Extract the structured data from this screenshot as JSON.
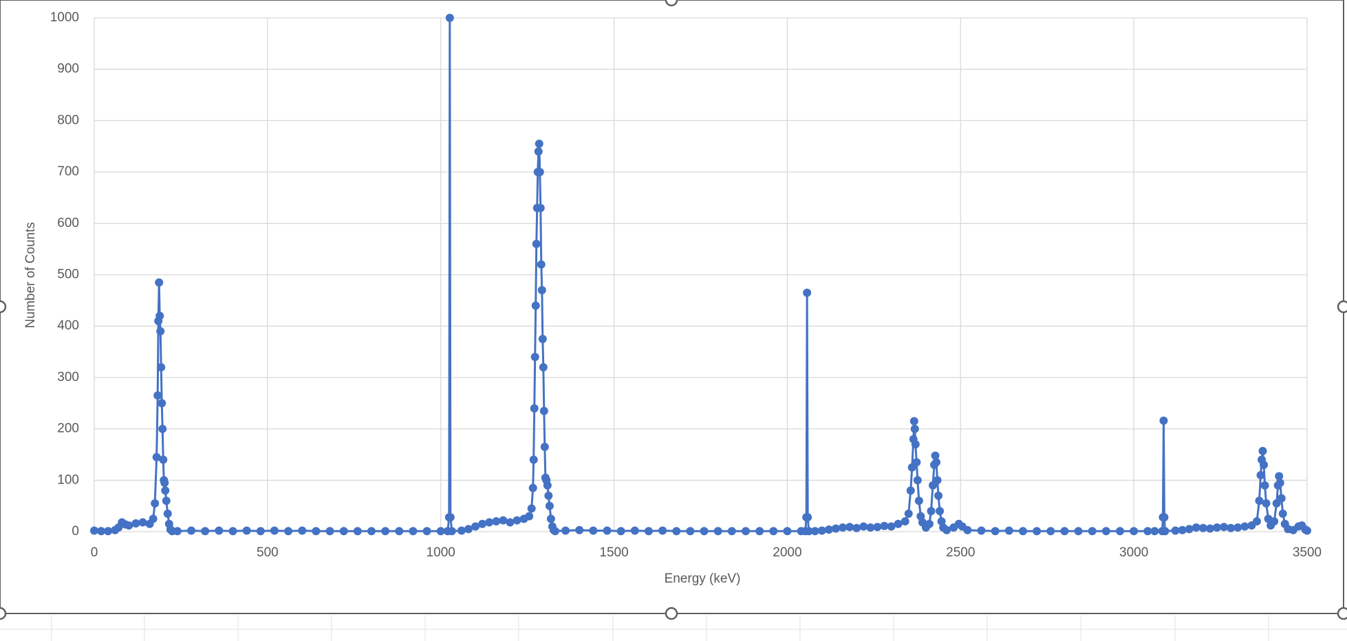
{
  "chart_data": {
    "type": "scatter",
    "lines": true,
    "markers": true,
    "grid": true,
    "x_label": "Energy (keV)",
    "y_label": "Number of Counts",
    "xlim": [
      0,
      3500
    ],
    "xticks": [
      0,
      500,
      1000,
      1500,
      2000,
      2500,
      3000,
      3500
    ],
    "ylim": [
      0,
      1000
    ],
    "yticks": [
      0,
      100,
      200,
      300,
      400,
      500,
      600,
      700,
      800,
      900,
      1000
    ],
    "x": [
      0,
      20,
      40,
      60,
      70,
      80,
      90,
      100,
      120,
      140,
      160,
      170,
      175,
      180,
      183,
      185,
      187,
      189,
      191,
      193,
      195,
      197,
      199,
      201,
      203,
      205,
      208,
      212,
      216,
      220,
      225,
      240,
      280,
      320,
      360,
      400,
      440,
      480,
      520,
      560,
      600,
      640,
      680,
      720,
      760,
      800,
      840,
      880,
      920,
      960,
      1000,
      1020,
      1024,
      1026,
      1028,
      1032,
      1060,
      1080,
      1100,
      1120,
      1140,
      1160,
      1180,
      1200,
      1220,
      1240,
      1255,
      1262,
      1266,
      1268,
      1270,
      1272,
      1274,
      1276,
      1278,
      1280,
      1282,
      1284,
      1286,
      1288,
      1290,
      1292,
      1294,
      1296,
      1298,
      1300,
      1302,
      1305,
      1308,
      1311,
      1314,
      1318,
      1322,
      1326,
      1330,
      1360,
      1400,
      1440,
      1480,
      1520,
      1560,
      1600,
      1640,
      1680,
      1720,
      1760,
      1800,
      1840,
      1880,
      1920,
      1960,
      2000,
      2040,
      2052,
      2055,
      2057,
      2059,
      2062,
      2080,
      2100,
      2120,
      2140,
      2160,
      2180,
      2200,
      2220,
      2240,
      2260,
      2280,
      2300,
      2320,
      2340,
      2350,
      2356,
      2360,
      2364,
      2366,
      2368,
      2370,
      2373,
      2376,
      2380,
      2385,
      2390,
      2400,
      2410,
      2415,
      2420,
      2424,
      2427,
      2430,
      2433,
      2436,
      2440,
      2445,
      2450,
      2460,
      2480,
      2495,
      2505,
      2520,
      2560,
      2600,
      2640,
      2680,
      2720,
      2760,
      2800,
      2840,
      2880,
      2920,
      2960,
      3000,
      3040,
      3060,
      3082,
      3084,
      3086,
      3088,
      3090,
      3120,
      3140,
      3160,
      3180,
      3200,
      3220,
      3240,
      3260,
      3280,
      3300,
      3320,
      3340,
      3355,
      3362,
      3366,
      3369,
      3372,
      3375,
      3378,
      3382,
      3388,
      3395,
      3405,
      3412,
      3416,
      3419,
      3422,
      3426,
      3430,
      3436,
      3445,
      3460,
      3475,
      3485,
      3495,
      3500
    ],
    "series": [
      {
        "color": "#4472c4",
        "values": [
          2,
          1,
          1,
          3,
          8,
          18,
          14,
          12,
          16,
          18,
          15,
          25,
          55,
          145,
          265,
          410,
          485,
          420,
          390,
          320,
          250,
          200,
          140,
          100,
          95,
          80,
          60,
          35,
          15,
          4,
          1,
          1,
          2,
          1,
          2,
          1,
          2,
          1,
          2,
          1,
          2,
          1,
          1,
          1,
          1,
          1,
          1,
          1,
          1,
          1,
          1,
          1,
          28,
          1000,
          28,
          1,
          2,
          5,
          10,
          15,
          18,
          20,
          22,
          18,
          22,
          25,
          30,
          45,
          85,
          140,
          240,
          340,
          440,
          560,
          630,
          700,
          740,
          755,
          700,
          630,
          520,
          470,
          375,
          320,
          235,
          165,
          105,
          100,
          90,
          70,
          50,
          25,
          10,
          3,
          1,
          2,
          3,
          2,
          2,
          1,
          2,
          1,
          2,
          1,
          1,
          1,
          1,
          1,
          1,
          1,
          1,
          1,
          1,
          1,
          28,
          465,
          28,
          1,
          1,
          2,
          4,
          6,
          8,
          9,
          7,
          10,
          8,
          9,
          11,
          10,
          15,
          20,
          35,
          80,
          125,
          180,
          215,
          200,
          170,
          135,
          100,
          60,
          30,
          18,
          8,
          15,
          40,
          90,
          130,
          148,
          135,
          100,
          70,
          40,
          20,
          8,
          3,
          8,
          15,
          10,
          3,
          2,
          1,
          2,
          1,
          1,
          1,
          1,
          1,
          1,
          1,
          1,
          1,
          1,
          1,
          1,
          28,
          216,
          28,
          1,
          2,
          3,
          5,
          8,
          7,
          6,
          8,
          9,
          7,
          8,
          10,
          12,
          20,
          60,
          110,
          140,
          157,
          130,
          90,
          55,
          25,
          12,
          20,
          55,
          90,
          108,
          95,
          65,
          35,
          15,
          5,
          3,
          10,
          12,
          4,
          2
        ]
      }
    ]
  }
}
